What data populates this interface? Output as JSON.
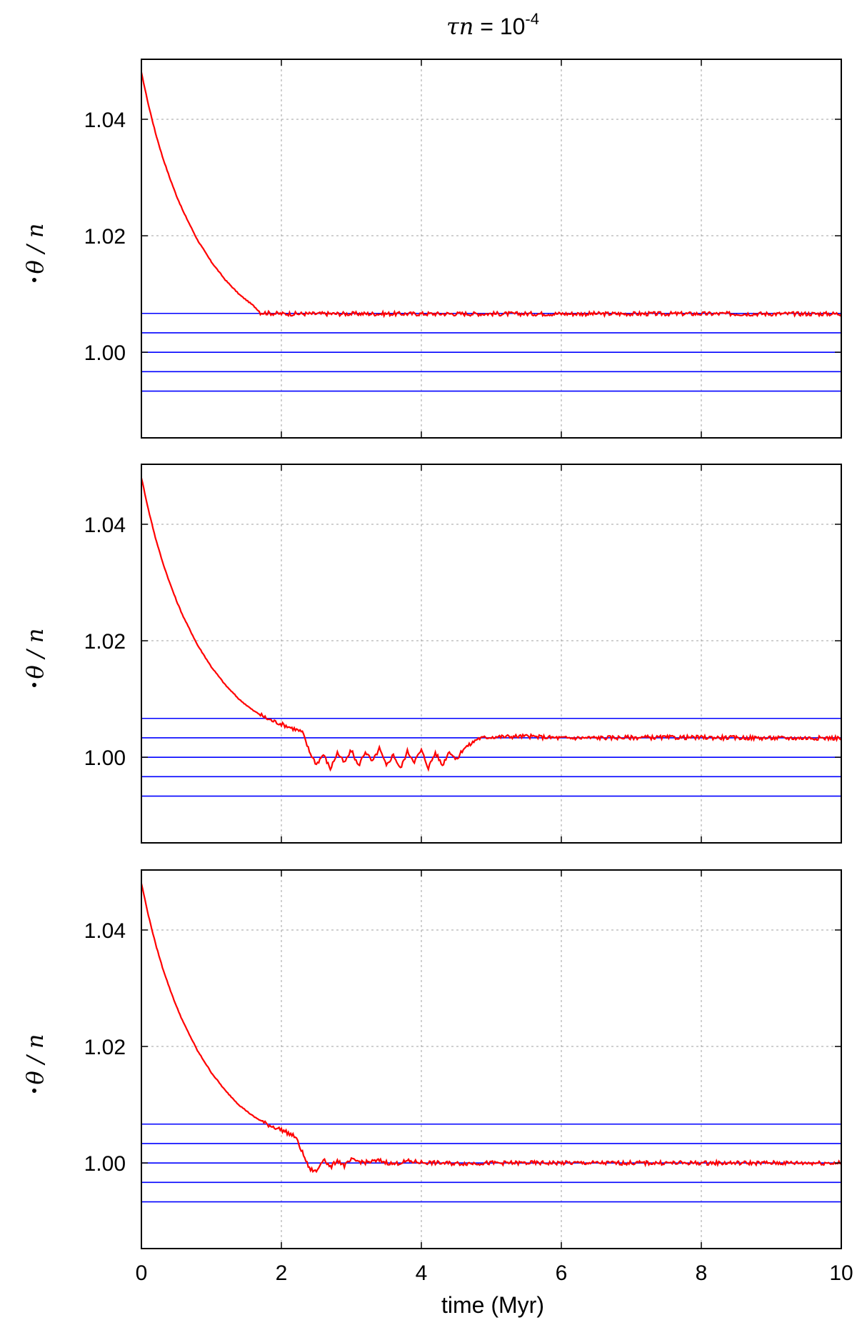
{
  "chart_data": {
    "type": "line",
    "title_math": "τn",
    "title_eq": " = 10",
    "title_exp": "-4",
    "xlabel": "time (Myr)",
    "ylabel_math": "θ",
    "ylabel_rest": " / n",
    "xlim": [
      0,
      10
    ],
    "ylim": [
      0.9853,
      1.0503
    ],
    "x_ticks": [
      "0",
      "2",
      "4",
      "6",
      "8",
      "10"
    ],
    "x_tick_values": [
      0,
      2,
      4,
      6,
      8,
      10
    ],
    "y_ticks": [
      "1.00",
      "1.02",
      "1.04"
    ],
    "y_tick_values": [
      1.0,
      1.02,
      1.04
    ],
    "grid": true,
    "line_colors": {
      "data": "#ff0000",
      "reference": "#0000ff"
    },
    "reference_levels": [
      0.99333,
      0.99667,
      1.0,
      1.00333,
      1.00667
    ],
    "panels": [
      {
        "series": {
          "x": [
            0,
            0.1,
            0.2,
            0.3,
            0.4,
            0.5,
            0.6,
            0.8,
            1.0,
            1.2,
            1.4,
            1.6,
            1.7,
            2.0,
            3.0,
            4.0,
            5.0,
            6.0,
            7.0,
            8.0,
            9.0,
            10.0
          ],
          "y": [
            1.048,
            1.0425,
            1.0377,
            1.0336,
            1.0301,
            1.0269,
            1.0241,
            1.0193,
            1.0155,
            1.0124,
            1.0099,
            1.008,
            1.0068,
            1.0066,
            1.0066,
            1.0066,
            1.0066,
            1.0066,
            1.0066,
            1.0066,
            1.0066,
            1.0066
          ]
        }
      },
      {
        "series": {
          "x": [
            0,
            0.1,
            0.2,
            0.3,
            0.4,
            0.5,
            0.6,
            0.8,
            1.0,
            1.2,
            1.4,
            1.6,
            1.8,
            2.0,
            2.2,
            2.3,
            2.4,
            2.5,
            2.6,
            2.7,
            2.8,
            2.9,
            3.0,
            3.1,
            3.2,
            3.3,
            3.4,
            3.5,
            3.6,
            3.7,
            3.8,
            3.9,
            4.0,
            4.1,
            4.2,
            4.3,
            4.4,
            4.5,
            4.6,
            4.7,
            4.8,
            5.0,
            5.5,
            6.0,
            7.0,
            8.0,
            9.0,
            10.0
          ],
          "y": [
            1.048,
            1.0425,
            1.0377,
            1.0336,
            1.0301,
            1.0269,
            1.0241,
            1.0193,
            1.0155,
            1.0124,
            1.0099,
            1.008,
            1.0066,
            1.0057,
            1.0048,
            1.0043,
            1.001,
            0.9988,
            1.0005,
            0.998,
            1.0008,
            0.999,
            1.0012,
            0.9985,
            1.001,
            0.9992,
            1.0015,
            0.9985,
            1.0005,
            0.998,
            1.001,
            0.9993,
            1.0012,
            0.9982,
            1.0008,
            0.9986,
            1.0011,
            0.9995,
            1.0015,
            1.0022,
            1.0032,
            1.0035,
            1.0036,
            1.0033,
            1.0034,
            1.0034,
            1.0033,
            1.0033
          ]
        }
      },
      {
        "series": {
          "x": [
            0,
            0.1,
            0.2,
            0.3,
            0.4,
            0.5,
            0.6,
            0.8,
            1.0,
            1.2,
            1.4,
            1.6,
            1.8,
            2.0,
            2.2,
            2.3,
            2.4,
            2.5,
            2.6,
            2.7,
            2.8,
            2.9,
            3.0,
            3.2,
            3.4,
            3.6,
            3.8,
            4.0,
            4.5,
            5.0,
            6.0,
            7.0,
            8.0,
            9.0,
            10.0
          ],
          "y": [
            1.048,
            1.0425,
            1.0377,
            1.0336,
            1.0301,
            1.0269,
            1.0241,
            1.0193,
            1.0155,
            1.0124,
            1.0099,
            1.008,
            1.0066,
            1.0057,
            1.0045,
            1.0018,
            0.999,
            0.9985,
            1.0008,
            0.9992,
            1.0005,
            0.9995,
            1.0005,
            1.0001,
            1.0004,
            0.9998,
            1.0003,
            1.0001,
            0.9999,
            1.0,
            1.0,
            1.0,
            1.0,
            1.0,
            1.0
          ]
        }
      }
    ]
  }
}
